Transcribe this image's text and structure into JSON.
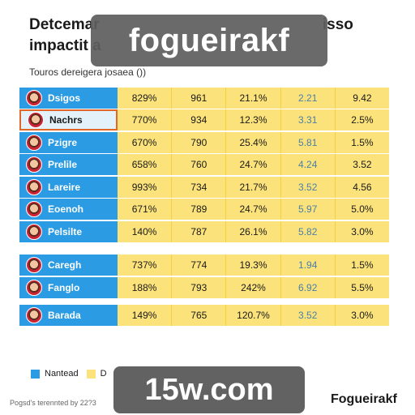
{
  "header": {
    "title_line1": "Detcemar",
    "title_line1_tail": "isso",
    "title_line2": "impactit a",
    "subtitle": "Touros dereigera josaea ())"
  },
  "watermarks": {
    "top": "fogueirakf",
    "bottom": "15w.com"
  },
  "legend": [
    {
      "label": "Nantead",
      "color": "#2b9be3"
    },
    {
      "label": "D",
      "color": "#fbe27a"
    }
  ],
  "source": "Pogsd's terennted by 22?3",
  "brand": "Fogueirakf",
  "chart_data": {
    "type": "table",
    "selected_row": 1,
    "rows": [
      {
        "name": "Dsigos",
        "values": [
          "829%",
          "961",
          "21.1%",
          "2.21",
          "9.42"
        ]
      },
      {
        "name": "Nachrs",
        "values": [
          "770%",
          "934",
          "12.3%",
          "3.31",
          "2.5%"
        ]
      },
      {
        "name": "Pzigre",
        "values": [
          "670%",
          "790",
          "25.4%",
          "5.81",
          "1.5%"
        ]
      },
      {
        "name": "Prelile",
        "values": [
          "658%",
          "760",
          "24.7%",
          "4.24",
          "3.52"
        ]
      },
      {
        "name": "Lareire",
        "values": [
          "993%",
          "734",
          "21.7%",
          "3.52",
          "4.56"
        ]
      },
      {
        "name": "Eoenoh",
        "values": [
          "671%",
          "789",
          "24.7%",
          "5.97",
          "5.0%"
        ]
      },
      {
        "name": "Pelsilte",
        "values": [
          "140%",
          "787",
          "26.1%",
          "5.82",
          "3.0%"
        ]
      },
      {
        "name": "Caregh",
        "values": [
          "737%",
          "774",
          "19.3%",
          "1.94",
          "1.5%"
        ]
      },
      {
        "name": "Fanglo",
        "values": [
          "188%",
          "793",
          "242%",
          "6.92",
          "5.5%"
        ]
      },
      {
        "name": "Barada",
        "values": [
          "149%",
          "765",
          "120.7%",
          "3.52",
          "3.0%"
        ]
      }
    ]
  }
}
